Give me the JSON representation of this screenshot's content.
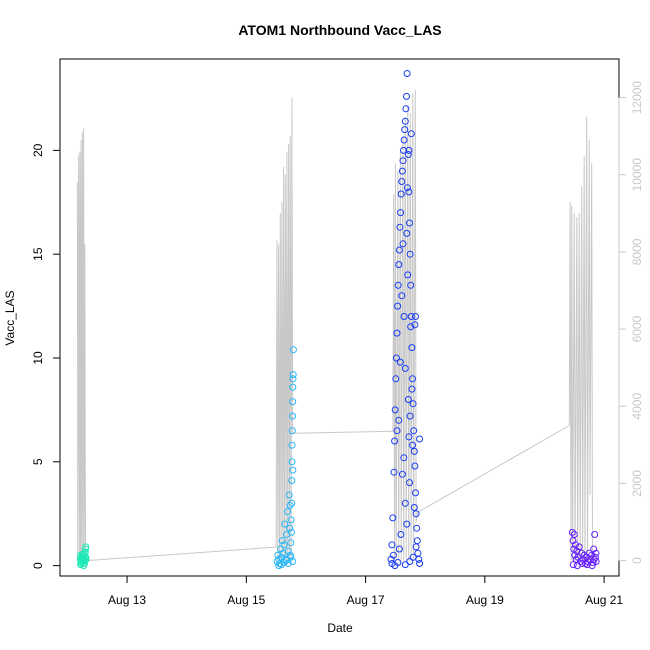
{
  "chart_data": {
    "type": "scatter",
    "title": "ATOM1 Northbound Vacc_LAS",
    "xlabel": "Date",
    "ylabel": "Vacc_LAS",
    "xlim": [
      "2023-08-11 21:00",
      "2023-08-21 06:00"
    ],
    "ylim": [
      -0.5,
      24.4
    ],
    "y2lim": [
      -400,
      13000
    ],
    "x_ticks": [
      {
        "label": "Aug 13",
        "value": "2023-08-13 00:00"
      },
      {
        "label": "Aug 15",
        "value": "2023-08-15 00:00"
      },
      {
        "label": "Aug 17",
        "value": "2023-08-17 00:00"
      },
      {
        "label": "Aug 19",
        "value": "2023-08-19 00:00"
      },
      {
        "label": "Aug 21",
        "value": "2023-08-21 00:00"
      }
    ],
    "y_ticks": [
      0,
      5,
      10,
      15,
      20
    ],
    "y2_ticks": [
      0,
      2000,
      4000,
      6000,
      8000,
      10000,
      12000
    ],
    "grid": false,
    "legend": "none",
    "point_series": [
      {
        "color": "#1de9b6",
        "x_range": [
          "2023-08-12 05:00",
          "2023-08-12 07:30"
        ],
        "points": [
          [
            0.05,
            0.3
          ],
          [
            0.1,
            0.5
          ],
          [
            0.15,
            0.2
          ],
          [
            0.2,
            0.4
          ],
          [
            0.25,
            0.1
          ],
          [
            0.3,
            0.35
          ],
          [
            0.35,
            0.45
          ],
          [
            0.4,
            0.25
          ],
          [
            0.45,
            0.15
          ],
          [
            0.5,
            0.3
          ],
          [
            0.55,
            0.4
          ],
          [
            0.6,
            0.2
          ],
          [
            0.65,
            0.5
          ],
          [
            0.7,
            0.3
          ],
          [
            0.75,
            0.1
          ],
          [
            0.8,
            0.6
          ],
          [
            0.85,
            0.25
          ],
          [
            0.9,
            0.8
          ],
          [
            0.95,
            0.4
          ],
          [
            1.0,
            0.3
          ],
          [
            0.12,
            0.05
          ],
          [
            0.42,
            0.55
          ],
          [
            0.62,
            0.0
          ],
          [
            0.88,
            0.65
          ],
          [
            0.97,
            0.9
          ]
        ]
      },
      {
        "color": "#29b6f6",
        "x_range": [
          "2023-08-15 12:00",
          "2023-08-15 19:00"
        ],
        "points": [
          [
            0.05,
            0.2
          ],
          [
            0.1,
            0.5
          ],
          [
            0.15,
            0.3
          ],
          [
            0.2,
            0.1
          ],
          [
            0.25,
            0.8
          ],
          [
            0.3,
            0.4
          ],
          [
            0.35,
            1.2
          ],
          [
            0.4,
            0.6
          ],
          [
            0.45,
            1.0
          ],
          [
            0.5,
            2.0
          ],
          [
            0.55,
            0.3
          ],
          [
            0.6,
            1.5
          ],
          [
            0.65,
            2.6
          ],
          [
            0.7,
            0.7
          ],
          [
            0.75,
            3.4
          ],
          [
            0.78,
            1.8
          ],
          [
            0.8,
            2.9
          ],
          [
            0.82,
            0.5
          ],
          [
            0.84,
            1.1
          ],
          [
            0.86,
            2.2
          ],
          [
            0.88,
            1.6
          ],
          [
            0.9,
            4.1
          ],
          [
            0.91,
            5.0
          ],
          [
            0.92,
            5.8
          ],
          [
            0.93,
            6.5
          ],
          [
            0.94,
            7.2
          ],
          [
            0.95,
            7.9
          ],
          [
            0.96,
            8.6
          ],
          [
            0.97,
            9.0
          ],
          [
            0.98,
            9.2
          ],
          [
            0.99,
            10.4
          ],
          [
            0.15,
            0.0
          ],
          [
            0.3,
            0.05
          ],
          [
            0.45,
            0.15
          ],
          [
            0.6,
            0.25
          ],
          [
            0.7,
            0.1
          ],
          [
            0.85,
            0.4
          ],
          [
            0.95,
            0.2
          ],
          [
            0.9,
            3.0
          ],
          [
            0.96,
            4.6
          ]
        ]
      },
      {
        "color": "#1a3df5",
        "x_range": [
          "2023-08-17 10:00",
          "2023-08-17 22:00"
        ],
        "points": [
          [
            0.02,
            0.3
          ],
          [
            0.05,
            1.0
          ],
          [
            0.08,
            2.3
          ],
          [
            0.1,
            0.5
          ],
          [
            0.12,
            4.5
          ],
          [
            0.14,
            6.0
          ],
          [
            0.16,
            7.5
          ],
          [
            0.18,
            9.0
          ],
          [
            0.2,
            10.0
          ],
          [
            0.22,
            11.2
          ],
          [
            0.24,
            12.5
          ],
          [
            0.26,
            13.5
          ],
          [
            0.28,
            14.5
          ],
          [
            0.3,
            15.2
          ],
          [
            0.32,
            16.3
          ],
          [
            0.34,
            17.0
          ],
          [
            0.36,
            17.9
          ],
          [
            0.38,
            18.5
          ],
          [
            0.4,
            19.0
          ],
          [
            0.42,
            19.5
          ],
          [
            0.44,
            20.0
          ],
          [
            0.46,
            20.5
          ],
          [
            0.48,
            21.0
          ],
          [
            0.5,
            21.4
          ],
          [
            0.52,
            22.0
          ],
          [
            0.54,
            22.6
          ],
          [
            0.56,
            23.7
          ],
          [
            0.6,
            19.8
          ],
          [
            0.62,
            18.0
          ],
          [
            0.64,
            16.5
          ],
          [
            0.66,
            15.0
          ],
          [
            0.68,
            13.5
          ],
          [
            0.7,
            12.0
          ],
          [
            0.72,
            10.5
          ],
          [
            0.74,
            9.0
          ],
          [
            0.76,
            7.8
          ],
          [
            0.78,
            6.5
          ],
          [
            0.8,
            5.5
          ],
          [
            0.82,
            4.8
          ],
          [
            0.84,
            3.5
          ],
          [
            0.86,
            2.5
          ],
          [
            0.88,
            1.8
          ],
          [
            0.9,
            1.2
          ],
          [
            0.92,
            0.6
          ],
          [
            0.95,
            0.3
          ],
          [
            0.98,
            0.1
          ],
          [
            0.58,
            14.0
          ],
          [
            0.6,
            8.0
          ],
          [
            0.62,
            6.2
          ],
          [
            0.64,
            4.0
          ],
          [
            0.45,
            5.2
          ],
          [
            0.4,
            4.4
          ],
          [
            0.5,
            3.0
          ],
          [
            0.55,
            2.0
          ],
          [
            0.35,
            1.5
          ],
          [
            0.3,
            0.8
          ],
          [
            0.68,
            11.5
          ],
          [
            0.72,
            8.5
          ],
          [
            0.5,
            9.5
          ],
          [
            0.46,
            12.0
          ],
          [
            0.55,
            16.0
          ],
          [
            0.57,
            18.2
          ],
          [
            0.62,
            20.0
          ],
          [
            0.7,
            20.8
          ],
          [
            0.42,
            15.5
          ],
          [
            0.38,
            13.0
          ],
          [
            0.33,
            9.8
          ],
          [
            0.28,
            7.0
          ],
          [
            0.22,
            6.5
          ],
          [
            0.66,
            7.2
          ],
          [
            0.74,
            5.8
          ],
          [
            0.8,
            2.8
          ],
          [
            0.86,
            0.9
          ],
          [
            0.76,
            0.4
          ],
          [
            0.65,
            0.2
          ],
          [
            0.5,
            0.05
          ],
          [
            0.25,
            0.15
          ],
          [
            0.15,
            0.0
          ],
          [
            0.05,
            0.1
          ],
          [
            0.84,
            12.0
          ],
          [
            0.82,
            11.6
          ],
          [
            0.98,
            6.1
          ]
        ]
      },
      {
        "color": "#651fff",
        "x_range": [
          "2023-08-20 11:00",
          "2023-08-20 21:00"
        ],
        "points": [
          [
            0.02,
            1.6
          ],
          [
            0.05,
            1.2
          ],
          [
            0.08,
            0.8
          ],
          [
            0.1,
            1.5
          ],
          [
            0.12,
            0.5
          ],
          [
            0.15,
            1.0
          ],
          [
            0.18,
            0.3
          ],
          [
            0.2,
            0.7
          ],
          [
            0.25,
            0.4
          ],
          [
            0.3,
            0.9
          ],
          [
            0.35,
            0.2
          ],
          [
            0.4,
            0.6
          ],
          [
            0.45,
            0.3
          ],
          [
            0.5,
            0.5
          ],
          [
            0.55,
            0.1
          ],
          [
            0.6,
            0.4
          ],
          [
            0.65,
            0.2
          ],
          [
            0.7,
            0.6
          ],
          [
            0.75,
            0.3
          ],
          [
            0.8,
            0.5
          ],
          [
            0.85,
            0.15
          ],
          [
            0.88,
            0.8
          ],
          [
            0.9,
            0.3
          ],
          [
            0.92,
            1.5
          ],
          [
            0.95,
            0.4
          ],
          [
            0.98,
            0.2
          ],
          [
            0.06,
            0.05
          ],
          [
            0.22,
            0.0
          ],
          [
            0.42,
            0.1
          ],
          [
            0.62,
            0.05
          ],
          [
            0.82,
            0.0
          ],
          [
            0.97,
            0.6
          ]
        ]
      }
    ],
    "line_series": {
      "color": "#c8c8c8",
      "axis": "right",
      "points": [
        [
          "2023-08-12 04:00",
          9800
        ],
        [
          "2023-08-12 04:10",
          0
        ],
        [
          "2023-08-12 04:30",
          10500
        ],
        [
          "2023-08-12 04:45",
          0
        ],
        [
          "2023-08-12 05:00",
          10600
        ],
        [
          "2023-08-12 05:15",
          0
        ],
        [
          "2023-08-12 05:30",
          10900
        ],
        [
          "2023-08-12 05:45",
          0
        ],
        [
          "2023-08-12 06:00",
          11100
        ],
        [
          "2023-08-12 06:15",
          0
        ],
        [
          "2023-08-12 06:30",
          11200
        ],
        [
          "2023-08-12 06:45",
          0
        ],
        [
          "2023-08-12 07:00",
          8200
        ],
        [
          "2023-08-12 07:15",
          0
        ],
        [
          "2023-08-12 07:30",
          0
        ],
        [
          "2023-08-15 12:00",
          350
        ],
        [
          "2023-08-15 12:20",
          8300
        ],
        [
          "2023-08-15 12:40",
          0
        ],
        [
          "2023-08-15 13:00",
          8200
        ],
        [
          "2023-08-15 13:20",
          0
        ],
        [
          "2023-08-15 13:40",
          9000
        ],
        [
          "2023-08-15 14:00",
          0
        ],
        [
          "2023-08-15 14:20",
          9300
        ],
        [
          "2023-08-15 14:40",
          0
        ],
        [
          "2023-08-15 15:00",
          10200
        ],
        [
          "2023-08-15 15:20",
          0
        ],
        [
          "2023-08-15 15:40",
          10000
        ],
        [
          "2023-08-15 16:00",
          0
        ],
        [
          "2023-08-15 16:20",
          10600
        ],
        [
          "2023-08-15 16:40",
          0
        ],
        [
          "2023-08-15 17:00",
          10800
        ],
        [
          "2023-08-15 17:20",
          0
        ],
        [
          "2023-08-15 17:40",
          11000
        ],
        [
          "2023-08-15 18:00",
          0
        ],
        [
          "2023-08-15 18:20",
          12000
        ],
        [
          "2023-08-15 18:40",
          3300
        ],
        [
          "2023-08-15 19:00",
          3300
        ],
        [
          "2023-08-17 11:00",
          3350
        ],
        [
          "2023-08-17 11:20",
          9500
        ],
        [
          "2023-08-17 11:40",
          0
        ],
        [
          "2023-08-17 12:00",
          10300
        ],
        [
          "2023-08-17 12:20",
          0
        ],
        [
          "2023-08-17 13:00",
          10100
        ],
        [
          "2023-08-17 13:20",
          0
        ],
        [
          "2023-08-17 14:00",
          10600
        ],
        [
          "2023-08-17 14:20",
          0
        ],
        [
          "2023-08-17 15:00",
          11000
        ],
        [
          "2023-08-17 15:20",
          0
        ],
        [
          "2023-08-17 16:00",
          11500
        ],
        [
          "2023-08-17 16:20",
          0
        ],
        [
          "2023-08-17 17:00",
          11800
        ],
        [
          "2023-08-17 17:20",
          0
        ],
        [
          "2023-08-17 18:00",
          11600
        ],
        [
          "2023-08-17 18:20",
          0
        ],
        [
          "2023-08-17 19:00",
          12100
        ],
        [
          "2023-08-17 19:20",
          0
        ],
        [
          "2023-08-17 20:00",
          12200
        ],
        [
          "2023-08-17 20:20",
          1000
        ],
        [
          "2023-08-17 21:00",
          1250
        ],
        [
          "2023-08-20 10:00",
          3500
        ],
        [
          "2023-08-20 10:20",
          9300
        ],
        [
          "2023-08-20 10:40",
          0
        ],
        [
          "2023-08-20 11:00",
          9200
        ],
        [
          "2023-08-20 11:20",
          0
        ],
        [
          "2023-08-20 12:00",
          9000
        ],
        [
          "2023-08-20 12:20",
          0
        ],
        [
          "2023-08-20 13:00",
          8900
        ],
        [
          "2023-08-20 13:20",
          0
        ],
        [
          "2023-08-20 14:00",
          9000
        ],
        [
          "2023-08-20 14:20",
          0
        ],
        [
          "2023-08-20 15:00",
          9700
        ],
        [
          "2023-08-20 15:20",
          0
        ],
        [
          "2023-08-20 16:00",
          10500
        ],
        [
          "2023-08-20 16:20",
          0
        ],
        [
          "2023-08-20 17:00",
          11500
        ],
        [
          "2023-08-20 17:20",
          0
        ],
        [
          "2023-08-20 18:00",
          10900
        ],
        [
          "2023-08-20 18:20",
          1700
        ],
        [
          "2023-08-20 19:00",
          10300
        ],
        [
          "2023-08-20 19:20",
          0
        ]
      ]
    }
  }
}
